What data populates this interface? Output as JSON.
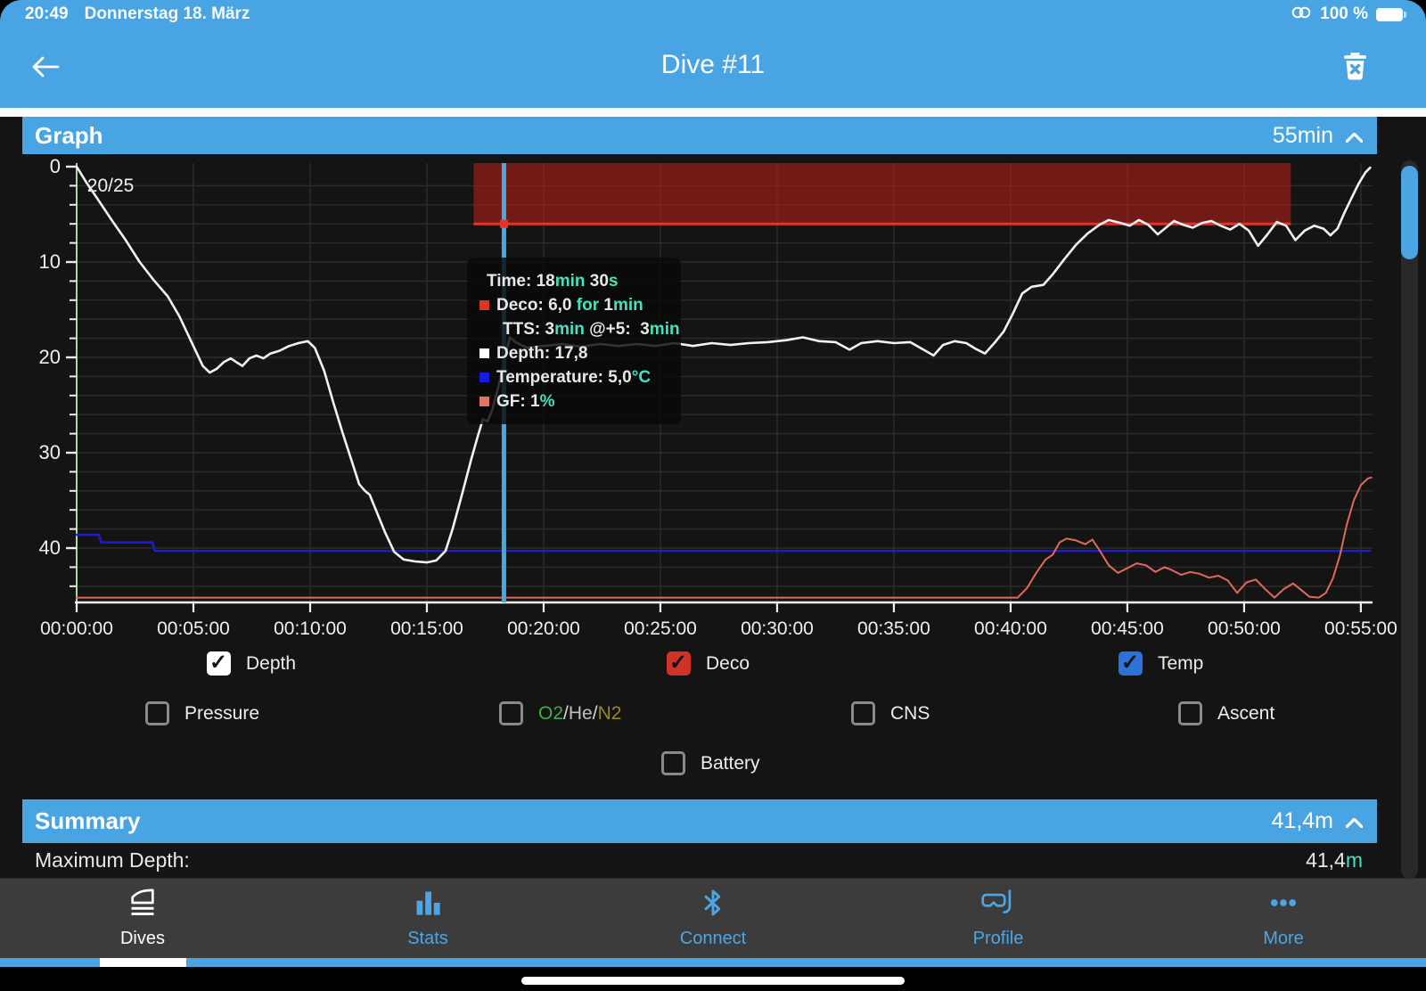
{
  "status_bar": {
    "time": "20:49",
    "date": "Donnerstag 18. März",
    "battery": "100 %"
  },
  "nav": {
    "title": "Dive #11"
  },
  "graph_section": {
    "title": "Graph",
    "duration": "55min"
  },
  "summary_section": {
    "title": "Summary",
    "value": "41,4m"
  },
  "summary_row": {
    "label": "Maximum Depth:",
    "value": "41,4",
    "unit": "m"
  },
  "tooltip": {
    "lines": [
      {
        "indent": 8,
        "parts": [
          [
            "Time: ",
            "w"
          ],
          [
            "18",
            "w"
          ],
          [
            "min",
            "u"
          ],
          [
            " 30",
            "w"
          ],
          [
            "s",
            "u"
          ]
        ]
      },
      {
        "bullet": "#dd3327",
        "parts": [
          [
            "Deco: ",
            "w"
          ],
          [
            "6,0 ",
            "w"
          ],
          [
            "for ",
            "u"
          ],
          [
            "1",
            "w"
          ],
          [
            "min",
            "u"
          ]
        ]
      },
      {
        "indent": 26,
        "parts": [
          [
            "TTS: ",
            "w"
          ],
          [
            "3",
            "w"
          ],
          [
            "min",
            "u"
          ],
          [
            " @+5:  ",
            "w"
          ],
          [
            "3",
            "w"
          ],
          [
            "min",
            "u"
          ]
        ]
      },
      {
        "bullet": "#ffffff",
        "parts": [
          [
            "Depth: ",
            "w"
          ],
          [
            "17,8",
            "w"
          ]
        ]
      },
      {
        "bullet": "#1a1adf",
        "parts": [
          [
            "Temperature: ",
            "w"
          ],
          [
            "5,0",
            "w"
          ],
          [
            "°C",
            "u"
          ]
        ]
      },
      {
        "bullet": "#e57369",
        "parts": [
          [
            "GF: ",
            "w"
          ],
          [
            "1",
            "w"
          ],
          [
            "%",
            "u"
          ]
        ]
      }
    ]
  },
  "checkboxes": {
    "row1": [
      {
        "label": "Depth",
        "checked": true,
        "color": "#ffffff"
      },
      {
        "label": "Deco",
        "checked": true,
        "color": "#cf3227"
      },
      {
        "label": "Temp",
        "checked": true,
        "color": "#2b72d9"
      }
    ],
    "row2": [
      {
        "label": "Pressure",
        "checked": false
      },
      {
        "label": "O2/He/N2",
        "checked": false,
        "parts": [
          [
            "O2",
            "#3fae49"
          ],
          [
            "/",
            "#d6d6d6"
          ],
          [
            "He",
            "#c0c0c0"
          ],
          [
            "/",
            "#d6d6d6"
          ],
          [
            "N2",
            "#99891d"
          ]
        ]
      },
      {
        "label": "CNS",
        "checked": false
      },
      {
        "label": "Ascent",
        "checked": false
      }
    ],
    "row3": [
      {
        "label": "Battery",
        "checked": false
      }
    ]
  },
  "tabs": {
    "items": [
      {
        "label": "Dives",
        "active": true
      },
      {
        "label": "Stats",
        "active": false
      },
      {
        "label": "Connect",
        "active": false
      },
      {
        "label": "Profile",
        "active": false
      },
      {
        "label": "More",
        "active": false
      }
    ]
  },
  "chart_data": {
    "type": "line",
    "title": "Dive #11 depth profile",
    "gas_label": "20/25",
    "xlim_minutes": [
      0,
      55.5
    ],
    "ylim_depth_m": [
      0,
      45.7
    ],
    "grid": {
      "x_every_min": 5,
      "y_every_m": 2,
      "color": "#2d2d2d"
    },
    "x_ticks": [
      {
        "t": 0,
        "label": "00:00:00"
      },
      {
        "t": 5,
        "label": "00:05:00"
      },
      {
        "t": 10,
        "label": "00:10:00"
      },
      {
        "t": 15,
        "label": "00:15:00"
      },
      {
        "t": 20,
        "label": "00:20:00"
      },
      {
        "t": 25,
        "label": "00:25:00"
      },
      {
        "t": 30,
        "label": "00:30:00"
      },
      {
        "t": 35,
        "label": "00:35:00"
      },
      {
        "t": 40,
        "label": "00:40:00"
      },
      {
        "t": 45,
        "label": "00:45:00"
      },
      {
        "t": 50,
        "label": "00:50:00"
      },
      {
        "t": 55,
        "label": "00:55:00"
      }
    ],
    "y_ticks": [
      {
        "d": 0,
        "label": "0"
      },
      {
        "d": 10,
        "label": "10"
      },
      {
        "d": 20,
        "label": "20"
      },
      {
        "d": 30,
        "label": "30"
      },
      {
        "d": 40,
        "label": "40"
      }
    ],
    "deco_band": {
      "t0": 17.0,
      "t1": 52.0,
      "depth_m": 6,
      "fill": "rgba(176,30,24,0.6)",
      "edge": "#e6332a"
    },
    "cursor": {
      "t": 18.3,
      "color": "#4aa9dc",
      "marker_depth": 6,
      "marker_color": "#e6332a"
    },
    "axis_colors": {
      "y_axis": "#aed6a4",
      "x_axis": "#f5f5f5",
      "tick_text": "#f0f0f0"
    },
    "series": [
      {
        "name": "Depth",
        "color": "#f2f2f2",
        "width": 2.6,
        "points": [
          [
            0,
            0
          ],
          [
            0.4,
            1.6
          ],
          [
            0.9,
            3.4
          ],
          [
            1.5,
            5.6
          ],
          [
            2.1,
            7.7
          ],
          [
            2.7,
            10
          ],
          [
            3.3,
            11.9
          ],
          [
            3.9,
            13.6
          ],
          [
            4.4,
            15.7
          ],
          [
            4.9,
            18.3
          ],
          [
            5.4,
            20.9
          ],
          [
            5.7,
            21.6
          ],
          [
            6,
            21.2
          ],
          [
            6.3,
            20.5
          ],
          [
            6.6,
            20.1
          ],
          [
            6.9,
            20.6
          ],
          [
            7.1,
            20.9
          ],
          [
            7.4,
            20.1
          ],
          [
            7.7,
            19.8
          ],
          [
            8,
            20.1
          ],
          [
            8.3,
            19.6
          ],
          [
            8.7,
            19.3
          ],
          [
            9.1,
            18.8
          ],
          [
            9.5,
            18.5
          ],
          [
            9.9,
            18.3
          ],
          [
            10.2,
            19
          ],
          [
            10.6,
            21.4
          ],
          [
            11,
            24.8
          ],
          [
            11.4,
            28
          ],
          [
            11.8,
            31
          ],
          [
            12.1,
            33.3
          ],
          [
            12.35,
            34
          ],
          [
            12.55,
            34.4
          ],
          [
            12.8,
            35.9
          ],
          [
            13.2,
            38.3
          ],
          [
            13.6,
            40.4
          ],
          [
            14,
            41.2
          ],
          [
            14.5,
            41.4
          ],
          [
            15,
            41.5
          ],
          [
            15.4,
            41.3
          ],
          [
            15.8,
            40.3
          ],
          [
            16.1,
            38
          ],
          [
            16.5,
            34.4
          ],
          [
            16.9,
            30.7
          ],
          [
            17.2,
            28.1
          ],
          [
            17.4,
            26.5
          ],
          [
            17.6,
            26.7
          ],
          [
            17.8,
            25.5
          ],
          [
            18.05,
            23.2
          ],
          [
            18.3,
            20.6
          ],
          [
            18.55,
            17.9
          ],
          [
            18.8,
            18.4
          ],
          [
            19.3,
            19
          ],
          [
            20,
            18.8
          ],
          [
            20.8,
            18.6
          ],
          [
            21.6,
            18.9
          ],
          [
            22.4,
            18.6
          ],
          [
            23.2,
            18.8
          ],
          [
            24,
            18.6
          ],
          [
            24.8,
            18.8
          ],
          [
            25.6,
            18.5
          ],
          [
            26.4,
            18.8
          ],
          [
            27.2,
            18.5
          ],
          [
            28,
            18.7
          ],
          [
            28.8,
            18.5
          ],
          [
            29.6,
            18.4
          ],
          [
            30.4,
            18.2
          ],
          [
            31.1,
            17.9
          ],
          [
            31.8,
            18.3
          ],
          [
            32.5,
            18.4
          ],
          [
            33.1,
            19.2
          ],
          [
            33.6,
            18.5
          ],
          [
            34.3,
            18.3
          ],
          [
            35,
            18.5
          ],
          [
            35.7,
            18.4
          ],
          [
            36.2,
            19.1
          ],
          [
            36.7,
            19.8
          ],
          [
            37.1,
            18.7
          ],
          [
            37.6,
            18.3
          ],
          [
            38.1,
            18.5
          ],
          [
            38.5,
            19.1
          ],
          [
            38.9,
            19.6
          ],
          [
            39.3,
            18.5
          ],
          [
            39.7,
            17.3
          ],
          [
            40.1,
            15.4
          ],
          [
            40.5,
            13.3
          ],
          [
            40.9,
            12.6
          ],
          [
            41.4,
            12.4
          ],
          [
            41.8,
            11.3
          ],
          [
            42.3,
            9.7
          ],
          [
            42.8,
            8.2
          ],
          [
            43.3,
            7
          ],
          [
            43.8,
            6.1
          ],
          [
            44.2,
            5.6
          ],
          [
            44.7,
            5.9
          ],
          [
            45.1,
            6.2
          ],
          [
            45.5,
            5.6
          ],
          [
            45.9,
            6.1
          ],
          [
            46.3,
            7.1
          ],
          [
            46.7,
            6.3
          ],
          [
            47,
            5.7
          ],
          [
            47.4,
            6.1
          ],
          [
            47.8,
            6.4
          ],
          [
            48.2,
            5.9
          ],
          [
            48.6,
            5.7
          ],
          [
            49,
            6.2
          ],
          [
            49.4,
            6.6
          ],
          [
            49.8,
            6
          ],
          [
            50.2,
            6.7
          ],
          [
            50.6,
            8.3
          ],
          [
            51,
            7.1
          ],
          [
            51.4,
            5.8
          ],
          [
            51.8,
            6.2
          ],
          [
            52.2,
            7.7
          ],
          [
            52.6,
            6.7
          ],
          [
            53,
            6.2
          ],
          [
            53.4,
            6.5
          ],
          [
            53.7,
            7.2
          ],
          [
            54,
            6.5
          ],
          [
            54.3,
            4.8
          ],
          [
            54.6,
            3.3
          ],
          [
            54.9,
            1.8
          ],
          [
            55.2,
            0.6
          ],
          [
            55.4,
            0.1
          ]
        ]
      },
      {
        "name": "Temperature",
        "color": "#1b1be0",
        "width": 2.4,
        "points": [
          [
            0,
            38.6
          ],
          [
            0.95,
            38.6
          ],
          [
            1.05,
            39.4
          ],
          [
            3.25,
            39.4
          ],
          [
            3.35,
            40.3
          ],
          [
            55.4,
            40.3
          ]
        ]
      },
      {
        "name": "GF",
        "color": "#e0695c",
        "width": 2,
        "points": [
          [
            0,
            45.2
          ],
          [
            40.3,
            45.2
          ],
          [
            40.7,
            44.2
          ],
          [
            41.1,
            42.6
          ],
          [
            41.5,
            41.2
          ],
          [
            41.8,
            40.7
          ],
          [
            42.1,
            39.4
          ],
          [
            42.4,
            39
          ],
          [
            42.8,
            39.2
          ],
          [
            43.2,
            39.6
          ],
          [
            43.5,
            39.1
          ],
          [
            43.8,
            40.2
          ],
          [
            44.2,
            41.8
          ],
          [
            44.6,
            42.6
          ],
          [
            45,
            42.1
          ],
          [
            45.4,
            41.6
          ],
          [
            45.8,
            41.8
          ],
          [
            46.2,
            42.5
          ],
          [
            46.6,
            42
          ],
          [
            46.9,
            42.3
          ],
          [
            47.3,
            42.8
          ],
          [
            47.7,
            42.5
          ],
          [
            48.1,
            42.7
          ],
          [
            48.5,
            43.1
          ],
          [
            48.9,
            42.9
          ],
          [
            49.3,
            43.4
          ],
          [
            49.7,
            44.7
          ],
          [
            50.1,
            43.6
          ],
          [
            50.5,
            43.3
          ],
          [
            50.9,
            44.3
          ],
          [
            51.3,
            45.2
          ],
          [
            51.7,
            44.3
          ],
          [
            52.1,
            43.7
          ],
          [
            52.5,
            44.5
          ],
          [
            52.8,
            45.1
          ],
          [
            53.2,
            45.2
          ],
          [
            53.5,
            44.7
          ],
          [
            53.8,
            43.2
          ],
          [
            54.1,
            40.8
          ],
          [
            54.4,
            37.5
          ],
          [
            54.7,
            35
          ],
          [
            55,
            33.4
          ],
          [
            55.3,
            32.7
          ],
          [
            55.45,
            32.6
          ]
        ]
      }
    ]
  }
}
